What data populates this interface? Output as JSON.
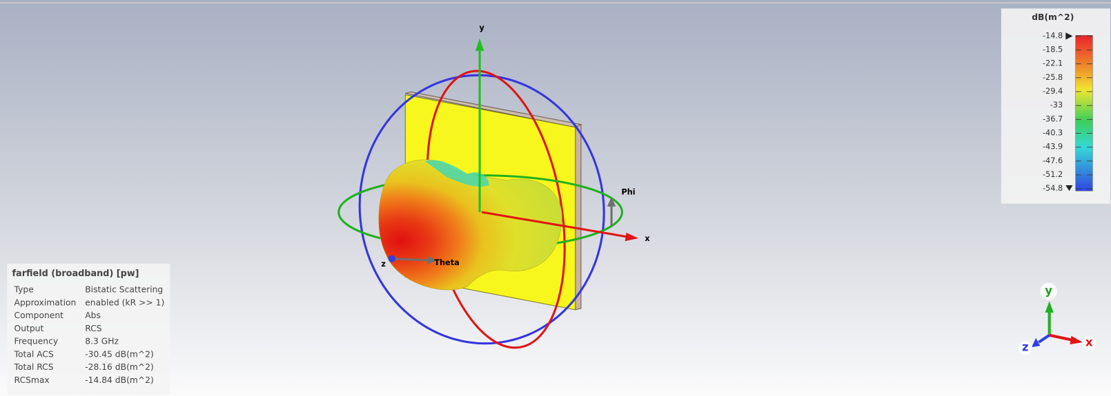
{
  "scene": {
    "axis_labels": {
      "y": "y",
      "x": "x",
      "phi": "Phi",
      "theta": "Theta",
      "z": "z"
    },
    "triad": {
      "y": "y",
      "x": "x",
      "z": "z"
    }
  },
  "colorbar": {
    "title": "dB(m^2)",
    "ticks": [
      -14.8,
      -18.5,
      -22.1,
      -25.8,
      -29.4,
      -33,
      -36.7,
      -40.3,
      -43.9,
      -47.6,
      -51.2,
      -54.8
    ]
  },
  "info": {
    "title": "farfield (broadband) [pw]",
    "rows": [
      [
        "Type",
        "Bistatic Scattering"
      ],
      [
        "Approximation",
        "enabled (kR >> 1)"
      ],
      [
        "Component",
        "Abs"
      ],
      [
        "Output",
        "RCS"
      ],
      [
        "Frequency",
        "8.3 GHz"
      ],
      [
        "Total ACS",
        "-30.45 dB(m^2)"
      ],
      [
        "Total RCS",
        "-28.16 dB(m^2)"
      ],
      [
        "RCSmax",
        "-14.84 dB(m^2)"
      ]
    ]
  }
}
